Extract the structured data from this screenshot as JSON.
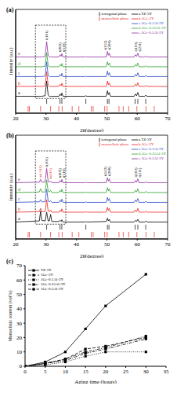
{
  "chart_data": [
    {
      "type": "line",
      "title": "(a)",
      "x_label": "2θ(degree)",
      "y_label": "Intensity (a.u.)",
      "xlim": [
        20,
        70
      ],
      "xticks": [
        20,
        30,
        40,
        50,
        60,
        70
      ],
      "ylim": [
        -30,
        160
      ],
      "tick_labels": "x",
      "legend": "upper right",
      "x": [
        20,
        27.8,
        28.2,
        28.6,
        29.7,
        30.2,
        30.7,
        31.1,
        31.5,
        31.9,
        34.2,
        34.6,
        35.0,
        35.2,
        35.6,
        42.8,
        43.1,
        43.4,
        49.8,
        50.2,
        50.5,
        50.8,
        51.2,
        59.0,
        59.4,
        59.8,
        60.2,
        60.6,
        62.5,
        62.8,
        63.2,
        70
      ],
      "series": [
        {
          "name": "a.TZ-3Y",
          "tag": "a",
          "color": "#000000",
          "values": [
            1,
            1,
            1,
            1,
            2,
            29,
            3,
            1,
            1,
            1,
            1,
            5,
            2,
            7,
            1,
            1,
            2,
            1,
            1,
            11,
            4,
            8,
            1,
            1,
            5,
            2,
            8,
            1,
            1,
            3,
            1,
            1
          ]
        },
        {
          "name": "b.1Ge-3Y",
          "tag": "b",
          "color": "#e8251f",
          "values": [
            19,
            19,
            19,
            19,
            20,
            46,
            21,
            19,
            19,
            19,
            19,
            23,
            20,
            25,
            19,
            19,
            20,
            19,
            19,
            29,
            22,
            26,
            19,
            19,
            23,
            20,
            26,
            19,
            19,
            21,
            19,
            19
          ]
        },
        {
          "name": "c.1Ge-0.1Al-3Y",
          "tag": "c",
          "color": "#2847c9",
          "values": [
            37,
            37,
            37,
            37,
            38,
            64,
            39,
            37,
            37,
            37,
            37,
            41,
            38,
            43,
            37,
            37,
            38,
            37,
            37,
            47,
            40,
            44,
            37,
            37,
            41,
            38,
            44,
            37,
            37,
            39,
            37,
            37
          ]
        },
        {
          "name": "d.1Ge-0.25Al-3Y",
          "tag": "d",
          "color": "#2ca02c",
          "values": [
            55,
            55,
            55,
            55,
            56,
            81,
            57,
            55,
            55,
            55,
            55,
            59,
            56,
            61,
            55,
            55,
            56,
            55,
            55,
            64,
            58,
            62,
            55,
            55,
            59,
            56,
            62,
            55,
            55,
            57,
            55,
            55
          ]
        },
        {
          "name": "e.1Ge-0.5Al-3Y",
          "tag": "e",
          "color": "#8b2b9b",
          "values": [
            73,
            73,
            73,
            73,
            74,
            101,
            75,
            73,
            73,
            73,
            73,
            77,
            74,
            79,
            73,
            73,
            74,
            73,
            73,
            83,
            76,
            80,
            73,
            73,
            77,
            74,
            80,
            73,
            73,
            75,
            73,
            73
          ]
        }
      ],
      "peak_labels": [
        {
          "x": 30.2,
          "labels": [
            "t(101)"
          ],
          "color": "#000000"
        },
        {
          "x": 35.2,
          "labels": [
            "t(002)",
            "t(110)"
          ],
          "color": "#000000"
        },
        {
          "x": 50.2,
          "labels": [
            "t(112)",
            "t(200)"
          ],
          "color": "#000000"
        },
        {
          "x": 60.2,
          "labels": [
            "t(103)",
            "t(211)"
          ],
          "color": "#000000"
        }
      ],
      "reference_phases": [
        {
          "name": "tetragonal phase",
          "color": "#000000",
          "positions": [
            30.2,
            34.6,
            35.2,
            43.1,
            50.2,
            50.7,
            59.3,
            60.2,
            62.8
          ]
        },
        {
          "name": "monoclinic phase",
          "color": "#e8251f",
          "positions": [
            24.1,
            24.5,
            28.2,
            31.5,
            34.2,
            35.3,
            38.6,
            40.8,
            44.9,
            45.5,
            49.3,
            50.1,
            54.0,
            55.4,
            57.2,
            59.9,
            62.9,
            65.6
          ]
        }
      ],
      "highlight_x": [
        26.5,
        36.5
      ]
    },
    {
      "type": "line",
      "title": "(b)",
      "x_label": "2θ(degree)",
      "y_label": "Intensity (a.u.)",
      "xlim": [
        20,
        70
      ],
      "xticks": [
        20,
        30,
        40,
        50,
        60,
        70
      ],
      "ylim": [
        -30,
        160
      ],
      "tick_labels": "x",
      "legend": "upper right",
      "x": [
        20,
        27.8,
        28.2,
        28.6,
        29.7,
        30.2,
        30.7,
        31.1,
        31.5,
        31.9,
        34.2,
        34.6,
        35.0,
        35.2,
        35.6,
        42.8,
        43.1,
        43.4,
        49.8,
        50.2,
        50.5,
        50.8,
        51.2,
        59.0,
        59.4,
        59.8,
        60.2,
        60.6,
        62.5,
        62.8,
        63.2,
        70
      ],
      "series": [
        {
          "name": "a.TZ-3Y",
          "tag": "a",
          "color": "#000000",
          "values": [
            1,
            3,
            21,
            4,
            3,
            19,
            3,
            3,
            15,
            2,
            2,
            4,
            2,
            5,
            1,
            1,
            2,
            1,
            2,
            8,
            3,
            6,
            1,
            1,
            4,
            2,
            6,
            1,
            1,
            3,
            1,
            1
          ]
        },
        {
          "name": "b.1Ge-3Y",
          "tag": "b",
          "color": "#e8251f",
          "values": [
            19,
            20,
            26,
            20,
            20,
            42,
            21,
            20,
            23,
            19,
            19,
            23,
            20,
            25,
            19,
            19,
            20,
            19,
            19,
            28,
            22,
            26,
            19,
            19,
            23,
            20,
            26,
            19,
            19,
            21,
            19,
            19
          ]
        },
        {
          "name": "c.1Ge-0.1Al-3Y",
          "tag": "c",
          "color": "#2847c9",
          "values": [
            37,
            38,
            42,
            38,
            38,
            61,
            39,
            38,
            40,
            37,
            37,
            41,
            38,
            43,
            37,
            37,
            38,
            37,
            37,
            46,
            40,
            44,
            37,
            37,
            41,
            38,
            44,
            37,
            37,
            39,
            37,
            37
          ]
        },
        {
          "name": "d.1Ge-0.25Al-3Y",
          "tag": "d",
          "color": "#2ca02c",
          "values": [
            55,
            56,
            62,
            56,
            56,
            78,
            57,
            56,
            59,
            55,
            55,
            59,
            56,
            61,
            55,
            55,
            56,
            55,
            55,
            64,
            58,
            62,
            55,
            55,
            59,
            56,
            62,
            55,
            55,
            57,
            55,
            55
          ]
        },
        {
          "name": "e.1Ge-0.5Al-3Y",
          "tag": "e",
          "color": "#8b2b9b",
          "values": [
            73,
            74,
            79,
            74,
            74,
            99,
            75,
            74,
            76,
            73,
            73,
            77,
            74,
            79,
            73,
            73,
            74,
            73,
            73,
            82,
            76,
            80,
            73,
            73,
            77,
            74,
            80,
            73,
            73,
            75,
            73,
            73
          ]
        }
      ],
      "peak_labels": [
        {
          "x": 28.2,
          "labels": [
            "m(-111)"
          ],
          "color": "#e8251f"
        },
        {
          "x": 30.2,
          "labels": [
            "t(101)"
          ],
          "color": "#000000"
        },
        {
          "x": 31.5,
          "labels": [
            "m(111)"
          ],
          "color": "#e8251f"
        },
        {
          "x": 35.2,
          "labels": [
            "t(002)",
            "t(110)"
          ],
          "color": "#000000"
        },
        {
          "x": 50.2,
          "labels": [
            "t(112)",
            "t(200)"
          ],
          "color": "#000000"
        },
        {
          "x": 60.2,
          "labels": [
            "t(103)",
            "t(211)"
          ],
          "color": "#000000"
        }
      ],
      "reference_phases": [
        {
          "name": "tetragonal phase",
          "color": "#000000",
          "positions": [
            30.2,
            34.6,
            35.2,
            43.1,
            50.2,
            50.7,
            59.3,
            60.2,
            62.8
          ]
        },
        {
          "name": "monoclinic phase",
          "color": "#e8251f",
          "positions": [
            24.1,
            24.5,
            28.2,
            31.5,
            34.2,
            35.3,
            38.6,
            40.8,
            44.9,
            45.5,
            49.3,
            50.1,
            54.0,
            55.4,
            57.2,
            59.9,
            62.9,
            65.6
          ]
        }
      ],
      "highlight_x": [
        26.5,
        36.5
      ]
    },
    {
      "type": "line",
      "title": "(c)",
      "x_label": "Aging time (hours)",
      "y_label": "Monoclinic content (vol%)",
      "xlim": [
        0,
        35
      ],
      "xticks": [
        0,
        5,
        10,
        15,
        20,
        25,
        30,
        35
      ],
      "ylim": [
        0,
        70
      ],
      "yticks": [
        0,
        10,
        20,
        30,
        40,
        50,
        60,
        70
      ],
      "legend": "upper left",
      "x": [
        0,
        5,
        10,
        15,
        20,
        30
      ],
      "series": [
        {
          "name": "TZ-3Y",
          "color": "#000000",
          "line_style": "solid",
          "marker": "square",
          "values": [
            0,
            3,
            10,
            26,
            42,
            64
          ]
        },
        {
          "name": "1Ge-3Y",
          "color": "#000000",
          "line_style": "dashed",
          "marker": "square",
          "values": [
            0,
            2,
            5,
            12,
            14,
            20
          ]
        },
        {
          "name": "1Ge-0.1Al-3Y",
          "color": "#000000",
          "line_style": "dotted",
          "marker": "square",
          "values": [
            0,
            1,
            3,
            7,
            10,
            10
          ]
        },
        {
          "name": "1Ge-0.25Al-3Y",
          "color": "#000000",
          "line_style": "dashdot",
          "marker": "square",
          "values": [
            0,
            2,
            4,
            9,
            12,
            19
          ]
        },
        {
          "name": "1Ge-0.5Al-3Y",
          "color": "#000000",
          "line_style": "dashdotdot",
          "marker": "square",
          "values": [
            0,
            2,
            5,
            10,
            13,
            21
          ]
        }
      ]
    }
  ]
}
